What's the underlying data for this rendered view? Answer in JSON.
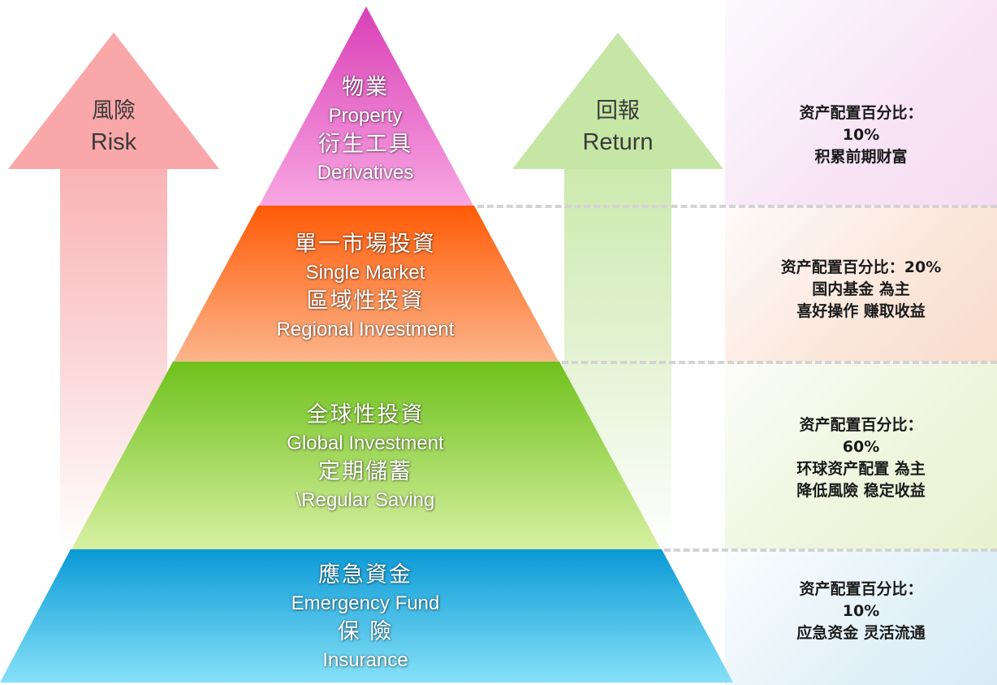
{
  "risk_arrow": {
    "zh": "風險",
    "en": "Risk"
  },
  "return_arrow": {
    "zh": "回報",
    "en": "Return"
  },
  "tiers": [
    {
      "line1": "物業",
      "line2": "Property",
      "line3": "衍生工具",
      "line4": "Derivatives",
      "color_top": "#d93fb5",
      "color_bottom": "#f8a6e3"
    },
    {
      "line1": "單一市場投資",
      "line2": "Single Market",
      "line3": "區域性投資",
      "line4": "Regional Investment",
      "color_top": "#ff5a05",
      "color_bottom": "#fcb58c"
    },
    {
      "line1": "全球性投資",
      "line2": "Global Investment",
      "line3": "定期儲蓄",
      "line4": "\\Regular Saving",
      "color_top": "#6ec11b",
      "color_bottom": "#d7f0a1"
    },
    {
      "line1": "應急資金",
      "line2": "Emergency Fund",
      "line3": "保 險",
      "line4": "Insurance",
      "color_top": "#0a99d6",
      "color_bottom": "#86e1f8"
    }
  ],
  "notes": [
    {
      "line1": "资产配置百分比：",
      "line2": "10%",
      "line3": "积累前期财富",
      "line4": ""
    },
    {
      "line1": "资产配置百分比：20%",
      "line2": "国内基金 為主",
      "line3": "喜好操作 赚取收益",
      "line4": ""
    },
    {
      "line1": "资产配置百分比：",
      "line2": "60%",
      "line3": "环球资产配置 為主",
      "line4": "降低風險 稳定收益"
    },
    {
      "line1": "资产配置百分比：",
      "line2": "10%",
      "line3": "应急资金 灵活流通",
      "line4": ""
    }
  ]
}
